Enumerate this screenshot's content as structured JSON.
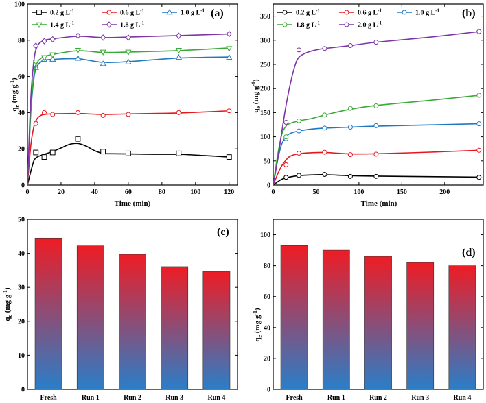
{
  "chart_data": [
    {
      "panel": "(a)",
      "type": "line",
      "xlabel": "Time (min)",
      "ylabel": "q_e (mg g^-1)",
      "xlim": [
        0,
        125
      ],
      "ylim": [
        0,
        100
      ],
      "xticks": [
        0,
        20,
        40,
        60,
        80,
        100,
        120
      ],
      "yticks": [
        0,
        20,
        40,
        60,
        80,
        100
      ],
      "legend": "top",
      "series": [
        {
          "name": "0.2 g L-1",
          "label": "0.2 g L",
          "color": "#000000",
          "marker": "square",
          "x": [
            5,
            10,
            15,
            30,
            45,
            60,
            90,
            120
          ],
          "values": [
            18,
            15.5,
            18,
            25.5,
            18.5,
            17.5,
            17.5,
            15.5
          ],
          "fit_x": [
            0,
            3,
            5,
            10,
            15,
            20,
            25,
            30,
            35,
            40,
            45,
            50,
            60,
            75,
            90,
            105,
            120
          ],
          "fit_y": [
            0,
            11,
            15,
            17,
            18.5,
            20.5,
            22.5,
            23,
            21.5,
            19,
            17.5,
            17.3,
            17.2,
            17,
            17,
            16.3,
            15.5
          ]
        },
        {
          "name": "0.6 g L-1",
          "label": "0.6 g L",
          "color": "#e8151b",
          "marker": "circle",
          "x": [
            5,
            10,
            15,
            30,
            45,
            60,
            90,
            120
          ],
          "values": [
            34,
            40,
            39,
            40,
            38.5,
            39,
            40,
            41
          ],
          "fit_x": [
            0,
            2,
            4,
            6,
            8,
            10,
            15,
            30,
            45,
            60,
            90,
            120
          ],
          "fit_y": [
            0,
            22,
            33,
            37,
            38.5,
            39,
            39.3,
            39.5,
            39,
            39.3,
            39.8,
            41
          ]
        },
        {
          "name": "1.0 g L-1",
          "label": "1.0 g L",
          "color": "#1f78c2",
          "marker": "triangle",
          "x": [
            5,
            10,
            15,
            30,
            45,
            60,
            90,
            120
          ],
          "values": [
            65,
            69.5,
            69.5,
            70,
            67,
            68,
            70.5,
            70.5
          ],
          "fit_x": [
            0,
            2,
            4,
            6,
            8,
            10,
            15,
            30,
            45,
            60,
            90,
            120
          ],
          "fit_y": [
            0,
            40,
            60,
            66,
            68,
            69,
            69.5,
            69.8,
            67.8,
            68.2,
            70.2,
            70.8
          ]
        },
        {
          "name": "1.4 g L-1",
          "label": "1.4 g L",
          "color": "#3aa935",
          "marker": "tri-down",
          "x": [
            5,
            10,
            15,
            30,
            45,
            60,
            90,
            120
          ],
          "values": [
            68,
            70.5,
            72,
            74.5,
            73.5,
            73.5,
            74.5,
            75.5
          ],
          "fit_x": [
            0,
            2,
            4,
            6,
            8,
            10,
            15,
            30,
            45,
            60,
            90,
            120
          ],
          "fit_y": [
            0,
            42,
            62,
            68,
            70,
            71,
            72.2,
            74.2,
            73.3,
            73.5,
            74.3,
            75.8
          ]
        },
        {
          "name": "1.8 g L-1",
          "label": "1.8 g L",
          "color": "#7b35a6",
          "marker": "diamond",
          "x": [
            5,
            10,
            15,
            30,
            45,
            60,
            90,
            120
          ],
          "values": [
            77,
            79.5,
            80.5,
            82.5,
            81.5,
            81.5,
            82.5,
            83.5
          ],
          "fit_x": [
            0,
            2,
            4,
            6,
            8,
            10,
            15,
            30,
            45,
            60,
            90,
            120
          ],
          "fit_y": [
            0,
            48,
            70,
            77,
            79,
            80,
            80.8,
            82.2,
            81.5,
            81.8,
            82.6,
            83.5
          ]
        }
      ]
    },
    {
      "panel": "(b)",
      "type": "line",
      "xlabel": "Time (min)",
      "ylabel": "q_e (mg g^-1)",
      "xlim": [
        0,
        245
      ],
      "ylim": [
        0,
        375
      ],
      "xticks": [
        0,
        50,
        100,
        150,
        200
      ],
      "yticks": [
        0,
        50,
        100,
        150,
        200,
        250,
        300,
        350
      ],
      "legend": "top",
      "series": [
        {
          "name": "0.2 g L-1",
          "label": "0.2 g L",
          "color": "#000000",
          "marker": "circle",
          "x": [
            15,
            30,
            60,
            90,
            120,
            240
          ],
          "values": [
            16,
            20,
            22,
            18,
            18,
            16
          ],
          "fit_x": [
            0,
            10,
            20,
            30,
            45,
            60,
            90,
            120,
            180,
            240
          ],
          "fit_y": [
            0,
            12,
            17,
            19.5,
            21,
            21.5,
            19.5,
            18.5,
            17.5,
            16.5
          ]
        },
        {
          "name": "0.6 g L-1",
          "label": "0.6 g L",
          "color": "#e8151b",
          "marker": "circle",
          "x": [
            15,
            30,
            60,
            90,
            120,
            240
          ],
          "values": [
            42,
            66,
            68,
            63,
            64,
            72
          ],
          "fit_x": [
            0,
            5,
            10,
            15,
            20,
            30,
            45,
            60,
            75,
            90,
            120,
            180,
            240
          ],
          "fit_y": [
            0,
            22,
            40,
            52,
            60,
            65,
            67,
            67.5,
            66,
            64.5,
            64.8,
            68,
            72
          ]
        },
        {
          "name": "1.0 g L-1",
          "label": "1.0 g L",
          "color": "#1f78c2",
          "marker": "circle",
          "x": [
            15,
            30,
            60,
            90,
            120,
            240
          ],
          "values": [
            96,
            112,
            118,
            120,
            123,
            127
          ],
          "fit_x": [
            0,
            5,
            10,
            15,
            20,
            30,
            45,
            60,
            90,
            120,
            180,
            240
          ],
          "fit_y": [
            0,
            50,
            85,
            100,
            107,
            112,
            116,
            118,
            120,
            122,
            124.5,
            127
          ]
        },
        {
          "name": "1.8 g L-1",
          "label": "1.8 g L",
          "color": "#3aa935",
          "marker": "circle",
          "x": [
            15,
            30,
            60,
            90,
            120,
            240
          ],
          "values": [
            100,
            133,
            145,
            159,
            164,
            186
          ],
          "fit_x": [
            0,
            5,
            10,
            15,
            20,
            30,
            45,
            60,
            90,
            120,
            180,
            240
          ],
          "fit_y": [
            0,
            60,
            105,
            122,
            128,
            133,
            138,
            145,
            157,
            165,
            175,
            186
          ]
        },
        {
          "name": "2.0 g L-1",
          "label": "2.0 g L",
          "color": "#7b35a6",
          "marker": "circle",
          "x": [
            15,
            30,
            60,
            90,
            120,
            240
          ],
          "values": [
            130,
            280,
            283,
            289,
            296,
            318
          ],
          "fit_x": [
            0,
            5,
            10,
            15,
            20,
            25,
            30,
            40,
            50,
            60,
            90,
            120,
            180,
            240
          ],
          "fit_y": [
            0,
            50,
            110,
            165,
            210,
            245,
            265,
            275,
            280,
            283,
            289,
            296,
            306,
            318
          ]
        }
      ]
    },
    {
      "panel": "(c)",
      "type": "bar",
      "ylabel": "q_e (mg g^-1)",
      "ylim": [
        0,
        50
      ],
      "yticks": [
        0,
        10,
        20,
        30,
        40,
        50
      ],
      "categories": [
        "Fresh",
        "Run 1",
        "Run 2",
        "Run 3",
        "Run 4"
      ],
      "values": [
        44.5,
        42.2,
        39.7,
        36.1,
        34.6
      ],
      "gradient": [
        "#ee1c24",
        "#2a7ec8"
      ]
    },
    {
      "panel": "(d)",
      "type": "bar",
      "ylabel": "q_e (mg g^-1)",
      "ylim": [
        0,
        110
      ],
      "yticks": [
        0,
        20,
        40,
        60,
        80,
        100
      ],
      "categories": [
        "Fresh",
        "Run 1",
        "Run 2",
        "Run 3",
        "Run 4"
      ],
      "values": [
        93,
        90,
        86,
        82,
        80
      ],
      "gradient": [
        "#ee1c24",
        "#2a7ec8"
      ]
    }
  ]
}
